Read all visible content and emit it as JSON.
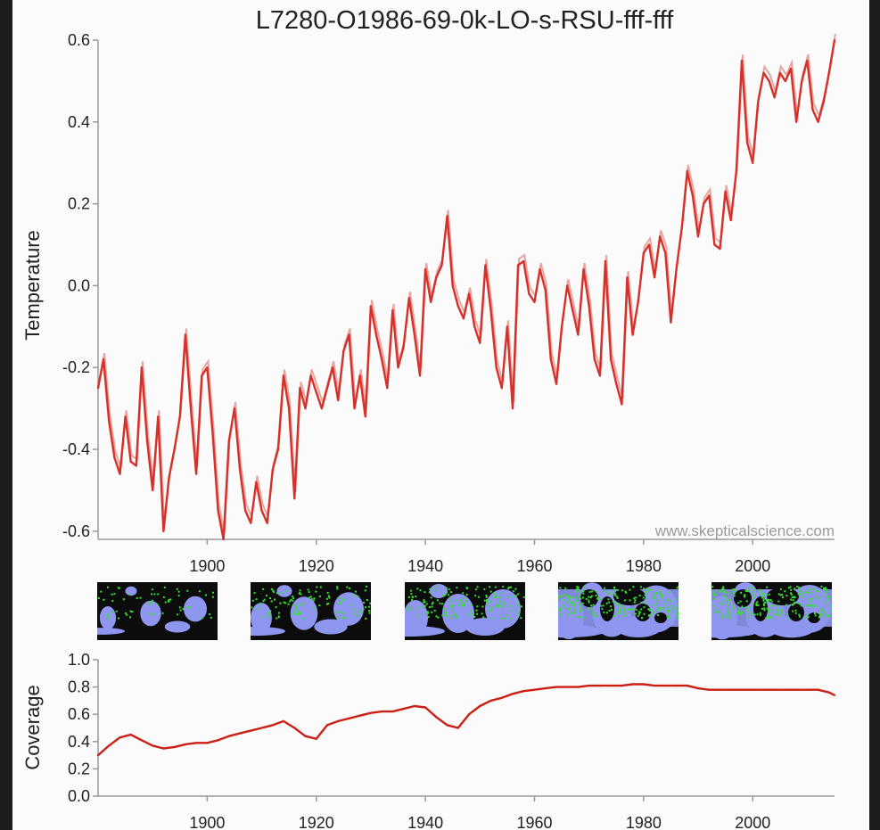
{
  "chart_data": [
    {
      "type": "line",
      "title": "L7280-O1986-69-0k-LO-s-RSU-fff-fff",
      "xlabel": "",
      "ylabel": "Temperature",
      "xlim": [
        1880,
        2015
      ],
      "ylim": [
        -0.62,
        0.6
      ],
      "yticks": [
        -0.6,
        -0.4,
        -0.2,
        0.0,
        0.2,
        0.4,
        0.6
      ],
      "ytick_labels": [
        "-0.6",
        "-0.4",
        "-0.2",
        "0.0",
        "0.2",
        "0.4",
        "0.6"
      ],
      "xticks": [
        1900,
        1920,
        1940,
        1960,
        1980,
        2000
      ],
      "xtick_labels": [
        "1900",
        "1920",
        "1940",
        "1960",
        "1980",
        "2000"
      ],
      "annotation": "www.skepticalscience.com",
      "series": [
        {
          "name": "temperature",
          "color": "#d6302a",
          "x": [
            1880,
            1881,
            1882,
            1883,
            1884,
            1885,
            1886,
            1887,
            1888,
            1889,
            1890,
            1891,
            1892,
            1893,
            1894,
            1895,
            1896,
            1897,
            1898,
            1899,
            1900,
            1901,
            1902,
            1903,
            1904,
            1905,
            1906,
            1907,
            1908,
            1909,
            1910,
            1911,
            1912,
            1913,
            1914,
            1915,
            1916,
            1917,
            1918,
            1919,
            1920,
            1921,
            1922,
            1923,
            1924,
            1925,
            1926,
            1927,
            1928,
            1929,
            1930,
            1931,
            1932,
            1933,
            1934,
            1935,
            1936,
            1937,
            1938,
            1939,
            1940,
            1941,
            1942,
            1943,
            1944,
            1945,
            1946,
            1947,
            1948,
            1949,
            1950,
            1951,
            1952,
            1953,
            1954,
            1955,
            1956,
            1957,
            1958,
            1959,
            1960,
            1961,
            1962,
            1963,
            1964,
            1965,
            1966,
            1967,
            1968,
            1969,
            1970,
            1971,
            1972,
            1973,
            1974,
            1975,
            1976,
            1977,
            1978,
            1979,
            1980,
            1981,
            1982,
            1983,
            1984,
            1985,
            1986,
            1987,
            1988,
            1989,
            1990,
            1991,
            1992,
            1993,
            1994,
            1995,
            1996,
            1997,
            1998,
            1999,
            2000,
            2001,
            2002,
            2003,
            2004,
            2005,
            2006,
            2007,
            2008,
            2009,
            2010,
            2011,
            2012,
            2013,
            2014,
            2015
          ],
          "values": [
            -0.25,
            -0.18,
            -0.33,
            -0.42,
            -0.46,
            -0.32,
            -0.43,
            -0.44,
            -0.2,
            -0.38,
            -0.5,
            -0.32,
            -0.6,
            -0.47,
            -0.4,
            -0.32,
            -0.12,
            -0.3,
            -0.46,
            -0.22,
            -0.2,
            -0.36,
            -0.55,
            -0.62,
            -0.38,
            -0.3,
            -0.45,
            -0.55,
            -0.58,
            -0.48,
            -0.55,
            -0.58,
            -0.45,
            -0.4,
            -0.22,
            -0.3,
            -0.52,
            -0.25,
            -0.3,
            -0.22,
            -0.26,
            -0.3,
            -0.25,
            -0.2,
            -0.28,
            -0.16,
            -0.12,
            -0.3,
            -0.22,
            -0.32,
            -0.05,
            -0.12,
            -0.18,
            -0.25,
            -0.06,
            -0.2,
            -0.15,
            -0.03,
            -0.12,
            -0.22,
            0.04,
            -0.04,
            0.02,
            0.05,
            0.17,
            0.0,
            -0.05,
            -0.08,
            -0.02,
            -0.1,
            -0.14,
            0.05,
            -0.06,
            -0.2,
            -0.25,
            -0.1,
            -0.3,
            0.05,
            0.06,
            -0.02,
            -0.04,
            0.04,
            -0.01,
            -0.18,
            -0.24,
            -0.1,
            0.0,
            -0.06,
            -0.12,
            0.04,
            -0.05,
            -0.18,
            -0.22,
            0.06,
            -0.18,
            -0.24,
            -0.29,
            0.02,
            -0.12,
            -0.04,
            0.08,
            0.1,
            0.02,
            0.12,
            0.08,
            -0.09,
            0.04,
            0.14,
            0.28,
            0.22,
            0.12,
            0.2,
            0.22,
            0.1,
            0.09,
            0.23,
            0.16,
            0.28,
            0.55,
            0.35,
            0.3,
            0.45,
            0.52,
            0.5,
            0.46,
            0.52,
            0.5,
            0.53,
            0.4,
            0.5,
            0.55,
            0.43,
            0.4,
            0.45,
            0.52,
            0.6
          ]
        }
      ]
    },
    {
      "type": "line",
      "title": "",
      "xlabel": "",
      "ylabel": "Coverage",
      "xlim": [
        1880,
        2015
      ],
      "ylim": [
        0.0,
        1.0
      ],
      "yticks": [
        0.0,
        0.2,
        0.4,
        0.6,
        0.8,
        1.0
      ],
      "ytick_labels": [
        "0.0",
        "0.2",
        "0.4",
        "0.6",
        "0.8",
        "1.0"
      ],
      "xticks": [
        1900,
        1920,
        1940,
        1960,
        1980,
        2000
      ],
      "xtick_labels": [
        "1900",
        "1920",
        "1940",
        "1960",
        "1980",
        "2000"
      ],
      "series": [
        {
          "name": "coverage",
          "color": "#cc1f14",
          "x": [
            1880,
            1882,
            1884,
            1886,
            1888,
            1890,
            1892,
            1894,
            1896,
            1898,
            1900,
            1902,
            1904,
            1906,
            1908,
            1910,
            1912,
            1914,
            1916,
            1918,
            1920,
            1922,
            1924,
            1926,
            1928,
            1930,
            1932,
            1934,
            1936,
            1938,
            1940,
            1942,
            1944,
            1946,
            1948,
            1950,
            1952,
            1954,
            1956,
            1958,
            1960,
            1962,
            1964,
            1966,
            1968,
            1970,
            1972,
            1974,
            1976,
            1978,
            1980,
            1982,
            1984,
            1986,
            1988,
            1990,
            1992,
            1994,
            1996,
            1998,
            2000,
            2002,
            2004,
            2006,
            2008,
            2010,
            2012,
            2014,
            2015
          ],
          "values": [
            0.3,
            0.37,
            0.43,
            0.45,
            0.41,
            0.37,
            0.35,
            0.36,
            0.38,
            0.39,
            0.39,
            0.41,
            0.44,
            0.46,
            0.48,
            0.5,
            0.52,
            0.55,
            0.5,
            0.44,
            0.42,
            0.52,
            0.55,
            0.57,
            0.59,
            0.61,
            0.62,
            0.62,
            0.64,
            0.66,
            0.65,
            0.58,
            0.52,
            0.5,
            0.6,
            0.66,
            0.7,
            0.72,
            0.75,
            0.77,
            0.78,
            0.79,
            0.8,
            0.8,
            0.8,
            0.81,
            0.81,
            0.81,
            0.81,
            0.82,
            0.82,
            0.81,
            0.81,
            0.81,
            0.81,
            0.79,
            0.78,
            0.78,
            0.78,
            0.78,
            0.78,
            0.78,
            0.78,
            0.78,
            0.78,
            0.78,
            0.78,
            0.76,
            0.74
          ]
        }
      ]
    }
  ],
  "coverage_maps": [
    {
      "label": "1880 coverage map",
      "land": "#0c0c0c",
      "ocean": "#8f96ef",
      "station": "#37e02f"
    },
    {
      "label": "1910 coverage map",
      "land": "#0c0c0c",
      "ocean": "#8f96ef",
      "station": "#37e02f"
    },
    {
      "label": "1940 coverage map",
      "land": "#0c0c0c",
      "ocean": "#8f96ef",
      "station": "#37e02f"
    },
    {
      "label": "1970 coverage map",
      "land": "#0c0c0c",
      "ocean": "#8f96ef",
      "station": "#37e02f"
    },
    {
      "label": "2000 coverage map",
      "land": "#0c0c0c",
      "ocean": "#8f96ef",
      "station": "#37e02f"
    }
  ],
  "colors": {
    "background": "#fbfbfb",
    "axis": "#9a9a9a",
    "text": "#222222",
    "annotation": "#9a9a9a"
  }
}
